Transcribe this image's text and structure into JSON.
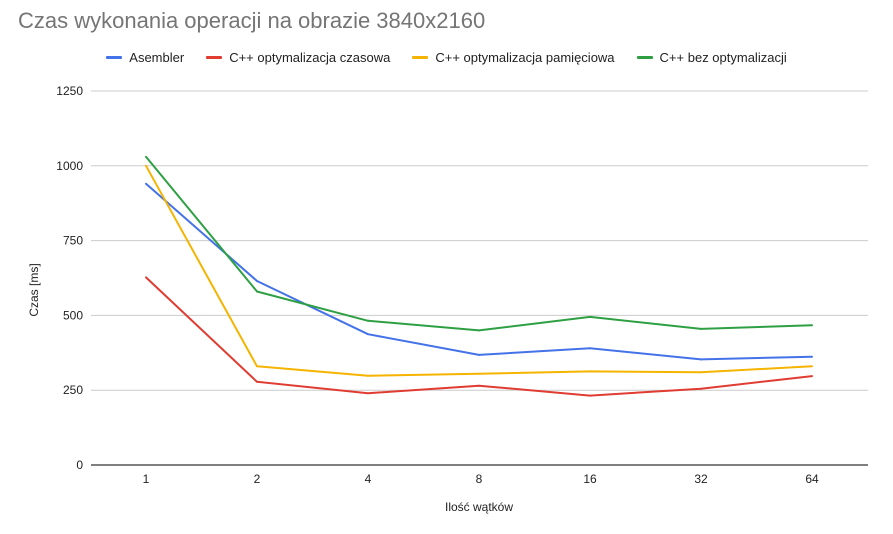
{
  "chart_data": {
    "type": "line",
    "title": "Czas wykonania operacji na obrazie 3840x2160",
    "xlabel": "Ilość wątków",
    "ylabel": "Czas [ms]",
    "categories": [
      "1",
      "2",
      "4",
      "8",
      "16",
      "32",
      "64"
    ],
    "ylim": [
      0,
      1250
    ],
    "yticks": [
      0,
      250,
      500,
      750,
      1000,
      1250
    ],
    "grid": true,
    "legend_position": "top",
    "series": [
      {
        "name": "Asembler",
        "color": "#4472e8",
        "values": [
          940,
          615,
          437,
          368,
          390,
          353,
          362
        ]
      },
      {
        "name": "C++ optymalizacja czasowa",
        "color": "#e03c31",
        "values": [
          627,
          278,
          240,
          265,
          232,
          255,
          297
        ]
      },
      {
        "name": "C++ optymalizacja pamięciowa",
        "color": "#f5b400",
        "values": [
          1000,
          330,
          298,
          305,
          313,
          310,
          330
        ]
      },
      {
        "name": "C++ bez optymalizacji",
        "color": "#2ea043",
        "values": [
          1030,
          580,
          482,
          450,
          495,
          455,
          467
        ]
      }
    ]
  }
}
